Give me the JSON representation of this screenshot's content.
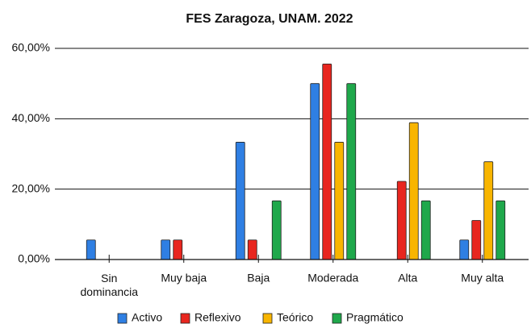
{
  "chart_data": {
    "type": "bar",
    "title": "FES Zaragoza, UNAM. 2022",
    "categories": [
      "Sin dominancia",
      "Muy baja",
      "Baja",
      "Moderada",
      "Alta",
      "Muy alta"
    ],
    "series": [
      {
        "name": "Activo",
        "color": "#2f7fe3",
        "values": [
          5.56,
          5.56,
          33.33,
          50,
          0,
          5.56
        ]
      },
      {
        "name": "Reflexivo",
        "color": "#e8261f",
        "values": [
          0,
          5.56,
          5.56,
          55.56,
          22.22,
          11.11
        ]
      },
      {
        "name": "Teórico",
        "color": "#f8b500",
        "values": [
          0,
          0,
          0,
          33.33,
          38.89,
          27.78
        ]
      },
      {
        "name": "Pragmático",
        "color": "#1fa84b",
        "values": [
          0,
          0,
          16.67,
          50,
          16.67,
          16.67
        ]
      }
    ],
    "ylim": [
      0,
      60
    ],
    "yticks": [
      {
        "value": 0,
        "label": "0,00%"
      },
      {
        "value": 20,
        "label": "20,00%"
      },
      {
        "value": 40,
        "label": "40,00%"
      },
      {
        "value": 60,
        "label": "60,00%"
      }
    ],
    "grid": true,
    "legend": "bottom"
  }
}
